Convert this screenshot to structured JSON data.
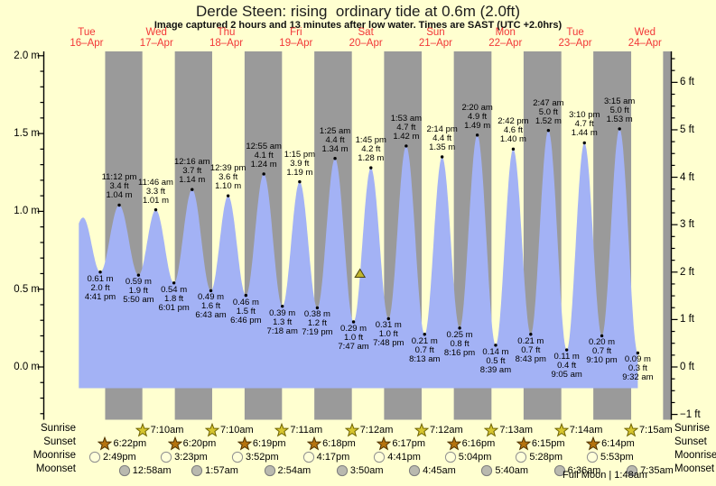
{
  "title": "Derde Steen: rising  ordinary tide at 0.6m (2.0ft)",
  "subtitle": "Image captured 2 hours and 13 minutes after low water. Times are SAST (UTC +2.0hrs)",
  "moon_phase_note": "Full Moon | 1:48am",
  "row_labels": {
    "sunrise": "Sunrise",
    "sunset": "Sunset",
    "moonrise": "Moonrise",
    "moonset": "Moonset"
  },
  "colors": {
    "background": "#ffffd0",
    "night_band": "#9a9a9a",
    "tide_fill": "#a3b2f5",
    "day_label_red": "#f23737",
    "axis": "#000000",
    "sunrise_star": "#d6c52e",
    "sunset_star": "#b5730e",
    "moonrise_circle": "#ffffd9",
    "moonset_circle": "#b9b9af",
    "current_marker": "#c0b52f"
  },
  "chart_data": {
    "type": "area",
    "title": "Derde Steen tide curve, 16-24 April",
    "y_axis_left": {
      "unit": "m",
      "values": [
        2.0,
        1.5,
        1.0,
        0.5,
        0.0
      ],
      "labels": [
        "2.0 m",
        "1.5 m",
        "1.0 m",
        "0.5 m",
        "0.0 m"
      ],
      "minor_step": 0.1
    },
    "y_axis_right": {
      "unit": "ft",
      "values": [
        6,
        5,
        4,
        3,
        2,
        1,
        0,
        -1
      ],
      "labels": [
        "6 ft",
        "5 ft",
        "4 ft",
        "3 ft",
        "2 ft",
        "1 ft",
        "0 ft",
        "−1 ft"
      ],
      "minor_step": 0.25
    },
    "days": [
      {
        "weekday": "Tue",
        "date": "16–Apr"
      },
      {
        "weekday": "Wed",
        "date": "17–Apr"
      },
      {
        "weekday": "Thu",
        "date": "18–Apr"
      },
      {
        "weekday": "Fri",
        "date": "19–Apr"
      },
      {
        "weekday": "Sat",
        "date": "20–Apr"
      },
      {
        "weekday": "Sun",
        "date": "21–Apr"
      },
      {
        "weekday": "Mon",
        "date": "22–Apr"
      },
      {
        "weekday": "Tue",
        "date": "23–Apr"
      },
      {
        "weekday": "Wed",
        "date": "24–Apr"
      }
    ],
    "tide_events": [
      {
        "day": 0,
        "time": "4:41 pm",
        "type": "low",
        "m": "0.61 m",
        "ft": "2.0 ft"
      },
      {
        "day": 0,
        "time": "11:12 pm",
        "type": "high",
        "m": "1.04 m",
        "ft": "3.4 ft"
      },
      {
        "day": 1,
        "time": "5:50 am",
        "type": "low",
        "m": "0.59 m",
        "ft": "1.9 ft"
      },
      {
        "day": 1,
        "time": "11:46 am",
        "type": "high",
        "m": "1.01 m",
        "ft": "3.3 ft"
      },
      {
        "day": 1,
        "time": "6:01 pm",
        "type": "low",
        "m": "0.54 m",
        "ft": "1.8 ft"
      },
      {
        "day": 2,
        "time": "12:16 am",
        "type": "high",
        "m": "1.14 m",
        "ft": "3.7 ft"
      },
      {
        "day": 2,
        "time": "6:43 am",
        "type": "low",
        "m": "0.49 m",
        "ft": "1.6 ft"
      },
      {
        "day": 2,
        "time": "12:39 pm",
        "type": "high",
        "m": "1.10 m",
        "ft": "3.6 ft"
      },
      {
        "day": 2,
        "time": "6:46 pm",
        "type": "low",
        "m": "0.46 m",
        "ft": "1.5 ft"
      },
      {
        "day": 3,
        "time": "12:55 am",
        "type": "high",
        "m": "1.24 m",
        "ft": "4.1 ft"
      },
      {
        "day": 3,
        "time": "7:18 am",
        "type": "low",
        "m": "0.39 m",
        "ft": "1.3 ft"
      },
      {
        "day": 3,
        "time": "1:15 pm",
        "type": "high",
        "m": "1.19 m",
        "ft": "3.9 ft"
      },
      {
        "day": 3,
        "time": "7:19 pm",
        "type": "low",
        "m": "0.38 m",
        "ft": "1.2 ft"
      },
      {
        "day": 4,
        "time": "1:25 am",
        "type": "high",
        "m": "1.34 m",
        "ft": "4.4 ft"
      },
      {
        "day": 4,
        "time": "7:47 am",
        "type": "low",
        "m": "0.29 m",
        "ft": "1.0 ft"
      },
      {
        "day": 4,
        "time": "1:45 pm",
        "type": "high",
        "m": "1.28 m",
        "ft": "4.2 ft"
      },
      {
        "day": 4,
        "time": "7:48 pm",
        "type": "low",
        "m": "0.31 m",
        "ft": "1.0 ft"
      },
      {
        "day": 5,
        "time": "1:53 am",
        "type": "high",
        "m": "1.42 m",
        "ft": "4.7 ft"
      },
      {
        "day": 5,
        "time": "8:13 am",
        "type": "low",
        "m": "0.21 m",
        "ft": "0.7 ft"
      },
      {
        "day": 5,
        "time": "2:14 pm",
        "type": "high",
        "m": "1.35 m",
        "ft": "4.4 ft"
      },
      {
        "day": 5,
        "time": "8:16 pm",
        "type": "low",
        "m": "0.25 m",
        "ft": "0.8 ft"
      },
      {
        "day": 6,
        "time": "2:20 am",
        "type": "high",
        "m": "1.49 m",
        "ft": "4.9 ft"
      },
      {
        "day": 6,
        "time": "8:39 am",
        "type": "low",
        "m": "0.14 m",
        "ft": "0.5 ft"
      },
      {
        "day": 6,
        "time": "2:42 pm",
        "type": "high",
        "m": "1.40 m",
        "ft": "4.6 ft"
      },
      {
        "day": 6,
        "time": "8:43 pm",
        "type": "low",
        "m": "0.21 m",
        "ft": "0.7 ft"
      },
      {
        "day": 7,
        "time": "2:47 am",
        "type": "high",
        "m": "1.52 m",
        "ft": "5.0 ft"
      },
      {
        "day": 7,
        "time": "9:05 am",
        "type": "low",
        "m": "0.11 m",
        "ft": "0.4 ft"
      },
      {
        "day": 7,
        "time": "3:10 pm",
        "type": "high",
        "m": "1.44 m",
        "ft": "4.7 ft"
      },
      {
        "day": 7,
        "time": "9:10 pm",
        "type": "low",
        "m": "0.20 m",
        "ft": "0.7 ft"
      },
      {
        "day": 8,
        "time": "3:15 am",
        "type": "high",
        "m": "1.53 m",
        "ft": "5.0 ft"
      },
      {
        "day": 8,
        "time": "9:32 am",
        "type": "low",
        "m": "0.09 m",
        "ft": "0.3 ft"
      }
    ],
    "current_marker": {
      "day": 4,
      "time": "10:00 am",
      "height_m": 0.6
    },
    "sun_moon": {
      "sunrise": [
        {
          "day": 1,
          "time": "7:10am"
        },
        {
          "day": 2,
          "time": "7:10am"
        },
        {
          "day": 3,
          "time": "7:11am"
        },
        {
          "day": 4,
          "time": "7:12am"
        },
        {
          "day": 5,
          "time": "7:12am"
        },
        {
          "day": 6,
          "time": "7:13am"
        },
        {
          "day": 7,
          "time": "7:14am"
        },
        {
          "day": 8,
          "time": "7:15am"
        }
      ],
      "sunset": [
        {
          "day": 0,
          "time": "6:22pm"
        },
        {
          "day": 1,
          "time": "6:20pm"
        },
        {
          "day": 2,
          "time": "6:19pm"
        },
        {
          "day": 3,
          "time": "6:18pm"
        },
        {
          "day": 4,
          "time": "6:17pm"
        },
        {
          "day": 5,
          "time": "6:16pm"
        },
        {
          "day": 6,
          "time": "6:15pm"
        },
        {
          "day": 7,
          "time": "6:14pm"
        }
      ],
      "moonrise": [
        {
          "day": 0,
          "time": "2:49pm"
        },
        {
          "day": 1,
          "time": "3:23pm"
        },
        {
          "day": 2,
          "time": "3:52pm"
        },
        {
          "day": 3,
          "time": "4:17pm"
        },
        {
          "day": 4,
          "time": "4:41pm"
        },
        {
          "day": 5,
          "time": "5:04pm"
        },
        {
          "day": 6,
          "time": "5:28pm"
        },
        {
          "day": 7,
          "time": "5:53pm"
        }
      ],
      "moonset": [
        {
          "day": 1,
          "time": "12:58am"
        },
        {
          "day": 2,
          "time": "1:57am"
        },
        {
          "day": 3,
          "time": "2:54am"
        },
        {
          "day": 4,
          "time": "3:50am"
        },
        {
          "day": 5,
          "time": "4:45am"
        },
        {
          "day": 6,
          "time": "5:40am"
        },
        {
          "day": 7,
          "time": "6:36am"
        },
        {
          "day": 8,
          "time": "7:35am"
        }
      ]
    }
  }
}
